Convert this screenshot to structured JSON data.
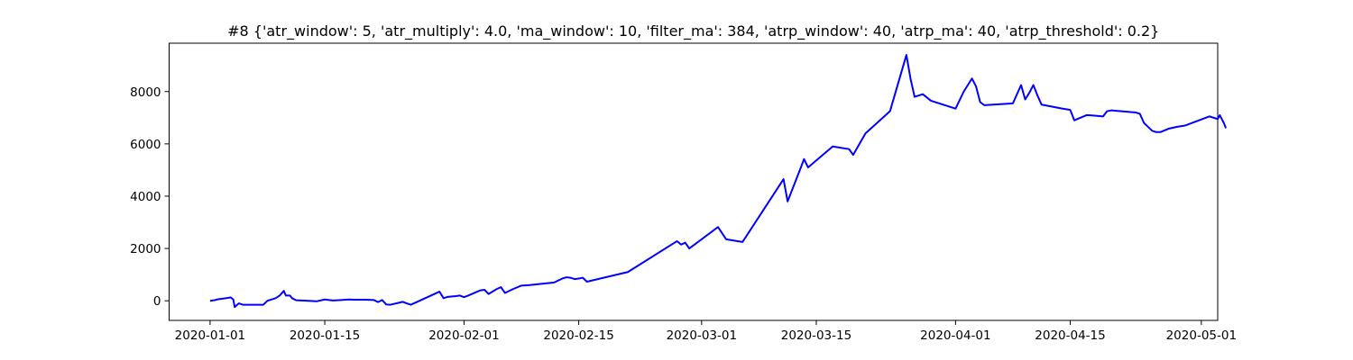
{
  "chart_data": {
    "type": "line",
    "title": "#8 {'atr_window': 5, 'atr_multiply': 4.0, 'ma_window': 10, 'filter_ma': 384, 'atrp_window': 40, 'atrp_ma': 40, 'atrp_threshold': 0.2}",
    "xlabel": "",
    "ylabel": "",
    "xlim": [
      "2019-12-27",
      "2020-05-03"
    ],
    "ylim": [
      -750,
      9850
    ],
    "grid": false,
    "line_color": "#0000ff",
    "x_ticks": [
      {
        "value": "2020-01-01",
        "label": "2020-01-01"
      },
      {
        "value": "2020-01-15",
        "label": "2020-01-15"
      },
      {
        "value": "2020-02-01",
        "label": "2020-02-01"
      },
      {
        "value": "2020-02-15",
        "label": "2020-02-15"
      },
      {
        "value": "2020-03-01",
        "label": "2020-03-01"
      },
      {
        "value": "2020-03-15",
        "label": "2020-03-15"
      },
      {
        "value": "2020-04-01",
        "label": "2020-04-01"
      },
      {
        "value": "2020-04-15",
        "label": "2020-04-15"
      },
      {
        "value": "2020-05-01",
        "label": "2020-05-01"
      }
    ],
    "y_ticks": [
      {
        "value": 0,
        "label": "0"
      },
      {
        "value": 2000,
        "label": "2000"
      },
      {
        "value": 4000,
        "label": "4000"
      },
      {
        "value": 6000,
        "label": "6000"
      },
      {
        "value": 8000,
        "label": "8000"
      }
    ],
    "series": [
      {
        "values": [
          [
            "2020-01-01",
            0
          ],
          [
            "2020-01-01 12:00",
            20
          ],
          [
            "2020-01-02",
            60
          ],
          [
            "2020-01-03",
            100
          ],
          [
            "2020-01-03 12:00",
            130
          ],
          [
            "2020-01-03 20:00",
            50
          ],
          [
            "2020-01-04",
            -240
          ],
          [
            "2020-01-04 12:00",
            -100
          ],
          [
            "2020-01-05",
            -150
          ],
          [
            "2020-01-06",
            -150
          ],
          [
            "2020-01-07",
            -150
          ],
          [
            "2020-01-07 12:00",
            -150
          ],
          [
            "2020-01-08",
            0
          ],
          [
            "2020-01-09",
            100
          ],
          [
            "2020-01-09 12:00",
            200
          ],
          [
            "2020-01-10",
            380
          ],
          [
            "2020-01-10 06:00",
            200
          ],
          [
            "2020-01-10 18:00",
            200
          ],
          [
            "2020-01-11",
            100
          ],
          [
            "2020-01-11 12:00",
            20
          ],
          [
            "2020-01-13",
            0
          ],
          [
            "2020-01-14",
            -20
          ],
          [
            "2020-01-15",
            50
          ],
          [
            "2020-01-16",
            10
          ],
          [
            "2020-01-17",
            30
          ],
          [
            "2020-01-18",
            50
          ],
          [
            "2020-01-18 12:00",
            40
          ],
          [
            "2020-01-20",
            40
          ],
          [
            "2020-01-21",
            30
          ],
          [
            "2020-01-21 12:00",
            -50
          ],
          [
            "2020-01-22",
            30
          ],
          [
            "2020-01-22 12:00",
            -140
          ],
          [
            "2020-01-23",
            -150
          ],
          [
            "2020-01-24",
            -80
          ],
          [
            "2020-01-24 12:00",
            -40
          ],
          [
            "2020-01-25",
            -100
          ],
          [
            "2020-01-25 12:00",
            -150
          ],
          [
            "2020-01-26",
            -80
          ],
          [
            "2020-01-29",
            350
          ],
          [
            "2020-01-29 12:00",
            100
          ],
          [
            "2020-01-30",
            150
          ],
          [
            "2020-01-31",
            180
          ],
          [
            "2020-01-31 12:00",
            200
          ],
          [
            "2020-02-01",
            140
          ],
          [
            "2020-02-01 12:00",
            200
          ],
          [
            "2020-02-03",
            400
          ],
          [
            "2020-02-03 12:00",
            420
          ],
          [
            "2020-02-04",
            260
          ],
          [
            "2020-02-05",
            450
          ],
          [
            "2020-02-05 12:00",
            520
          ],
          [
            "2020-02-06",
            300
          ],
          [
            "2020-02-07",
            450
          ],
          [
            "2020-02-08",
            580
          ],
          [
            "2020-02-09",
            600
          ],
          [
            "2020-02-12",
            700
          ],
          [
            "2020-02-13",
            850
          ],
          [
            "2020-02-13 12:00",
            900
          ],
          [
            "2020-02-14",
            880
          ],
          [
            "2020-02-14 12:00",
            830
          ],
          [
            "2020-02-15",
            850
          ],
          [
            "2020-02-15 12:00",
            880
          ],
          [
            "2020-02-16",
            730
          ],
          [
            "2020-02-21",
            1100
          ],
          [
            "2020-02-27",
            2280
          ],
          [
            "2020-02-27 12:00",
            2150
          ],
          [
            "2020-02-28",
            2220
          ],
          [
            "2020-02-28 12:00",
            2000
          ],
          [
            "2020-03-03",
            2820
          ],
          [
            "2020-03-04",
            2350
          ],
          [
            "2020-03-06",
            2250
          ],
          [
            "2020-03-11",
            4650
          ],
          [
            "2020-03-11 12:00",
            3800
          ],
          [
            "2020-03-13",
            5000
          ],
          [
            "2020-03-13 12:00",
            5420
          ],
          [
            "2020-03-14",
            5100
          ],
          [
            "2020-03-17",
            5900
          ],
          [
            "2020-03-19",
            5800
          ],
          [
            "2020-03-19 12:00",
            5580
          ],
          [
            "2020-03-21",
            6400
          ],
          [
            "2020-03-24",
            7250
          ],
          [
            "2020-03-26",
            9400
          ],
          [
            "2020-03-26 12:00",
            8500
          ],
          [
            "2020-03-27",
            7800
          ],
          [
            "2020-03-28",
            7900
          ],
          [
            "2020-03-29",
            7650
          ],
          [
            "2020-04-01",
            7350
          ],
          [
            "2020-04-02",
            8000
          ],
          [
            "2020-04-03",
            8500
          ],
          [
            "2020-04-03 12:00",
            8200
          ],
          [
            "2020-04-04",
            7600
          ],
          [
            "2020-04-04 12:00",
            7480
          ],
          [
            "2020-04-08",
            7550
          ],
          [
            "2020-04-09",
            8250
          ],
          [
            "2020-04-09 12:00",
            7700
          ],
          [
            "2020-04-10",
            7950
          ],
          [
            "2020-04-10 12:00",
            8250
          ],
          [
            "2020-04-11",
            7850
          ],
          [
            "2020-04-11 12:00",
            7500
          ],
          [
            "2020-04-14",
            7350
          ],
          [
            "2020-04-15",
            7300
          ],
          [
            "2020-04-15 12:00",
            6900
          ],
          [
            "2020-04-17",
            7100
          ],
          [
            "2020-04-18",
            7080
          ],
          [
            "2020-04-19",
            7050
          ],
          [
            "2020-04-19 12:00",
            7250
          ],
          [
            "2020-04-20",
            7280
          ],
          [
            "2020-04-23",
            7200
          ],
          [
            "2020-04-23 12:00",
            7150
          ],
          [
            "2020-04-24",
            6800
          ],
          [
            "2020-04-25",
            6500
          ],
          [
            "2020-04-25 12:00",
            6450
          ],
          [
            "2020-04-26",
            6450
          ],
          [
            "2020-04-27",
            6580
          ],
          [
            "2020-04-28",
            6650
          ],
          [
            "2020-04-29",
            6700
          ],
          [
            "2020-05-02",
            7050
          ],
          [
            "2020-05-03",
            6950
          ],
          [
            "2020-05-03 06:00",
            7100
          ],
          [
            "2020-05-03 18:00",
            6800
          ],
          [
            "2020-05-04",
            6600
          ]
        ]
      }
    ]
  }
}
